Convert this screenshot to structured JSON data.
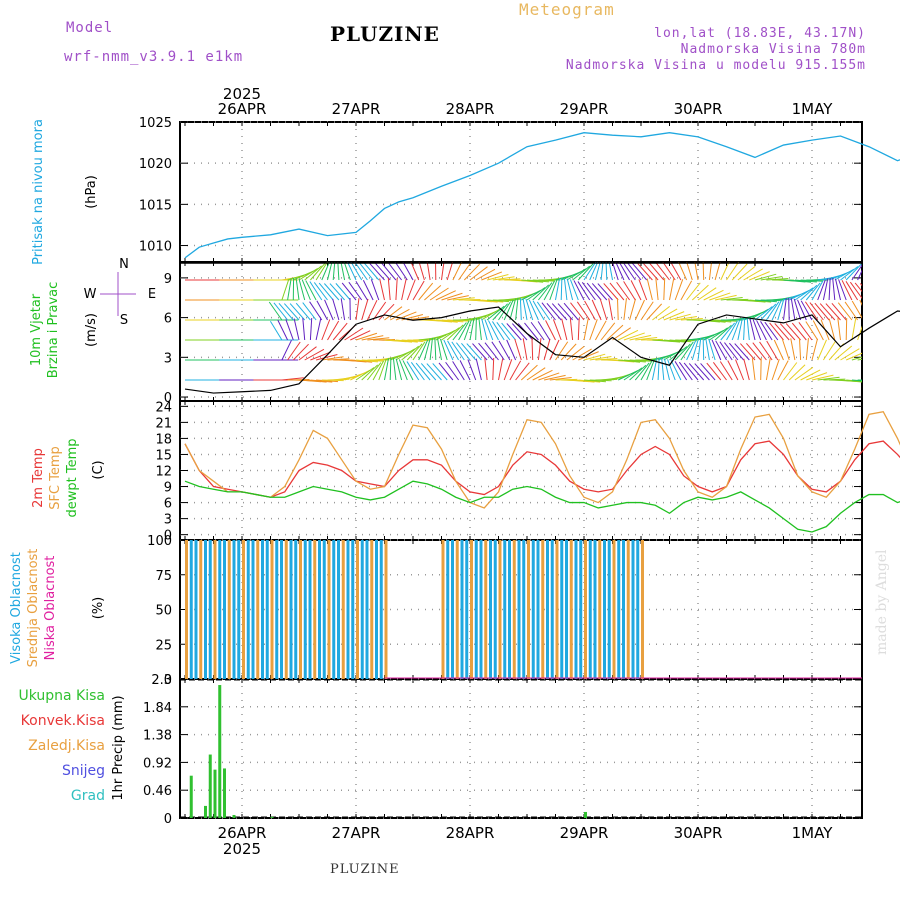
{
  "header": {
    "model_label": "Model",
    "model_value": "wrf-nmm_v3.9.1 e1km",
    "station": "PLUZINE",
    "meteogram": "Meteogram",
    "location": "lon,lat (18.83E, 43.17N)",
    "altitude": "Nadmorska Visina 780m",
    "model_altitude": "Nadmorska Visina u modelu 915.155m"
  },
  "footer": {
    "station": "PLUZINE",
    "credit": "made by Angel"
  },
  "colors": {
    "pressure": "#20a8e0",
    "t2m": "#e83838",
    "sfc": "#e8a040",
    "dew": "#20c020",
    "high": "#20a8e0",
    "mid": "#e8a040",
    "low": "#e020a0",
    "precip_total": "#30c030",
    "precip_conv": "#e83838",
    "snow": "#5050e0",
    "grad": "#30c0c0"
  },
  "compass": {
    "n": "N",
    "s": "S",
    "w": "W",
    "e": "E"
  },
  "chart_data": [
    {
      "type": "line",
      "id": "pressure",
      "ylabel": [
        "Pritisak na nivou mora",
        "(hPa)"
      ],
      "ylim": [
        1008,
        1025
      ],
      "yticks": [
        "1010",
        "1015",
        "1020",
        "1025"
      ],
      "x_hours": [
        0,
        3,
        6,
        9,
        12,
        18,
        24,
        30,
        36,
        39,
        42,
        45,
        48,
        54,
        60,
        66,
        72,
        78,
        84,
        90,
        96,
        102,
        108,
        114,
        120,
        126,
        132,
        138,
        144,
        150,
        156,
        162,
        168,
        174,
        178
      ],
      "values": [
        1008.5,
        1009.8,
        1010.3,
        1010.8,
        1011.0,
        1011.3,
        1012.0,
        1011.2,
        1011.6,
        1013.0,
        1014.5,
        1015.3,
        1015.8,
        1017.2,
        1018.5,
        1020.0,
        1022.0,
        1022.8,
        1023.7,
        1023.4,
        1023.2,
        1023.7,
        1023.2,
        1022.0,
        1020.7,
        1022.2,
        1022.8,
        1023.3,
        1022.0,
        1020.3,
        1021.5,
        1022.2,
        1021.7,
        1021.0,
        1019.3
      ]
    },
    {
      "type": "line",
      "id": "wind",
      "ylabel": [
        "10m Vjetar",
        "Brzina i Pravac",
        "(m/s)"
      ],
      "ylim": [
        -0.3,
        10.2
      ],
      "yticks": [
        "0",
        "3",
        "6",
        "9"
      ],
      "x_hours": [
        0,
        6,
        12,
        18,
        24,
        30,
        36,
        42,
        48,
        54,
        60,
        66,
        72,
        78,
        84,
        90,
        96,
        102,
        108,
        114,
        120,
        126,
        132,
        138,
        144,
        150,
        156,
        162,
        168,
        174,
        178
      ],
      "values": [
        0.6,
        0.3,
        0.4,
        0.5,
        1.0,
        3.2,
        5.5,
        6.2,
        5.8,
        6.0,
        6.5,
        6.8,
        4.8,
        3.2,
        3.0,
        4.5,
        3.0,
        2.4,
        5.5,
        6.2,
        5.9,
        5.6,
        6.2,
        3.8,
        5.2,
        6.5,
        6.3,
        5.9,
        5.5,
        5.8,
        5.4
      ]
    },
    {
      "type": "line",
      "id": "temperature",
      "ylabel": [
        "2m Temp",
        "SFC Temp",
        "dewpt Temp",
        "(C)"
      ],
      "ylim": [
        -1,
        25
      ],
      "yticks": [
        "0",
        "3",
        "6",
        "9",
        "12",
        "15",
        "18",
        "21",
        "24"
      ],
      "x_hours": [
        0,
        3,
        6,
        9,
        12,
        15,
        18,
        21,
        24,
        27,
        30,
        33,
        36,
        39,
        42,
        45,
        48,
        51,
        54,
        57,
        60,
        63,
        66,
        69,
        72,
        75,
        78,
        81,
        84,
        87,
        90,
        93,
        96,
        99,
        102,
        105,
        108,
        111,
        114,
        117,
        120,
        123,
        126,
        129,
        132,
        135,
        138,
        141,
        144,
        147,
        150,
        153,
        156,
        159,
        162,
        165,
        168,
        171,
        174,
        177,
        178
      ],
      "series": [
        {
          "name": "2m Temp",
          "values": [
            17,
            12,
            9,
            8.5,
            8,
            7.5,
            7,
            8,
            12,
            13.5,
            13,
            12,
            10,
            9.5,
            9,
            12,
            14,
            14,
            13,
            10,
            8,
            7.5,
            9,
            13,
            15.5,
            15,
            13,
            10,
            8.5,
            8,
            8.5,
            12,
            15,
            16.5,
            15,
            11,
            9,
            8,
            9,
            14,
            17,
            17.5,
            15,
            11,
            8.5,
            8,
            10,
            14,
            17,
            17.5,
            15,
            12,
            10,
            9.5,
            9,
            12,
            15,
            17,
            18,
            18,
            18
          ]
        },
        {
          "name": "SFC Temp",
          "values": [
            17,
            12,
            10,
            8,
            8,
            7.5,
            7,
            9,
            14,
            19.5,
            18,
            14,
            10,
            8.5,
            9,
            15,
            20.5,
            20,
            16,
            10,
            6,
            5,
            8,
            15,
            21.5,
            21,
            17,
            11,
            7,
            6,
            8,
            14,
            21,
            21.5,
            18,
            12,
            8,
            7,
            9,
            16,
            22,
            22.5,
            18,
            11,
            8,
            7,
            10,
            16,
            22.5,
            23,
            18,
            12,
            9,
            9,
            10,
            16,
            21,
            23,
            23.5,
            23.5,
            23.5
          ]
        },
        {
          "name": "dewpt Temp",
          "values": [
            10,
            9,
            8.5,
            8,
            8,
            7.5,
            7,
            7,
            8,
            9,
            8.5,
            8,
            7,
            6.5,
            7,
            8.5,
            10,
            9.5,
            8.5,
            7,
            6,
            7,
            7,
            8.5,
            9,
            8.5,
            7,
            6,
            6,
            5,
            5.5,
            6,
            6,
            5.5,
            4,
            6,
            7,
            6.5,
            7,
            8,
            6.5,
            5,
            3,
            1,
            0.5,
            1.5,
            4,
            6,
            7.5,
            7.5,
            6,
            7,
            7.5,
            8,
            8.5,
            8,
            7,
            8,
            7.5,
            8.5,
            8.5
          ]
        }
      ]
    },
    {
      "type": "bar",
      "id": "clouds",
      "ylabel": [
        "Visoka Oblacnost",
        "Srednja Oblacnost",
        "Niska Oblacnost",
        "(%)"
      ],
      "ylim": [
        0,
        100
      ],
      "yticks": [
        "0",
        "25",
        "50",
        "75",
        "100"
      ],
      "segments": [
        {
          "name": "Visoka Oblacnost",
          "from_hour": 0,
          "to_hour": 42,
          "value": 100
        },
        {
          "name": "Visoka Oblacnost",
          "from_hour": 54,
          "to_hour": 96,
          "value": 100
        }
      ]
    },
    {
      "type": "bar",
      "id": "precip",
      "ylabel": [
        "1hr Precip (mm)"
      ],
      "ylim": [
        0,
        2.3
      ],
      "yticks": [
        "0",
        "0.46",
        "0.92",
        "1.38",
        "1.84",
        "2.3"
      ],
      "legend": [
        "Ukupna Kisa",
        "Konvek.Kisa",
        "Zaledj.Kisa",
        "Snijeg",
        "Grad"
      ],
      "x_hours": [
        1,
        4,
        5,
        6,
        7,
        8,
        10,
        18,
        84
      ],
      "values": [
        0.7,
        0.2,
        1.05,
        0.8,
        2.2,
        0.82,
        0.05,
        0.02,
        0.1
      ]
    }
  ],
  "xaxis": {
    "year": "2025",
    "date_labels": [
      "26APR",
      "27APR",
      "28APR",
      "29APR",
      "30APR",
      "1MAY"
    ],
    "date_hours": [
      12,
      36,
      60,
      84,
      108,
      132
    ],
    "range_hours": [
      0,
      144
    ]
  }
}
